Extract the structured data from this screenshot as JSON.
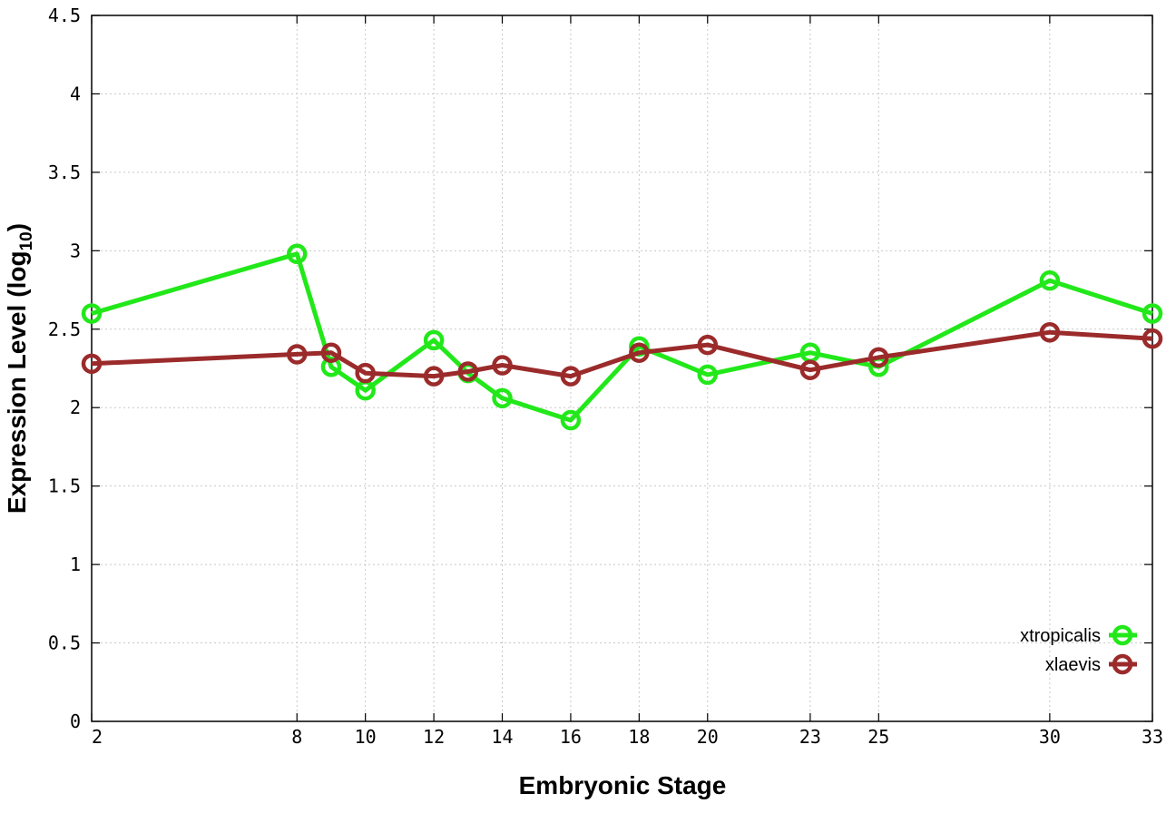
{
  "chart_data": {
    "type": "line",
    "xlabel": "Embryonic Stage",
    "ylabel": "Expression Level",
    "ylabel_subscript": "10",
    "ylabel_prefix": "(log",
    "ylabel_suffix": ")",
    "xlim": [
      2,
      33
    ],
    "ylim": [
      0,
      4.5
    ],
    "grid": true,
    "legend_position": "bottom-right",
    "x_ticks": [
      2,
      8,
      10,
      12,
      14,
      16,
      18,
      20,
      23,
      25,
      30,
      33
    ],
    "y_ticks": [
      {
        "value": 0,
        "label": "0"
      },
      {
        "value": 0.5,
        "label": "0.5"
      },
      {
        "value": 1,
        "label": "1"
      },
      {
        "value": 1.5,
        "label": "1.5"
      },
      {
        "value": 2,
        "label": "2"
      },
      {
        "value": 2.5,
        "label": "2.5"
      },
      {
        "value": 3,
        "label": "3"
      },
      {
        "value": 3.5,
        "label": "3.5"
      },
      {
        "value": 4,
        "label": "4"
      },
      {
        "value": 4.5,
        "label": "4.5"
      }
    ],
    "x": [
      2,
      8,
      9,
      10,
      12,
      13,
      14,
      16,
      18,
      20,
      23,
      25,
      30,
      33
    ],
    "series": [
      {
        "name": "xtropicalis",
        "color": "#22e81a",
        "values": [
          2.6,
          2.98,
          2.26,
          2.11,
          2.43,
          2.22,
          2.06,
          1.92,
          2.39,
          2.21,
          2.35,
          2.26,
          2.81,
          2.6
        ]
      },
      {
        "name": "xlaevis",
        "color": "#9b2b2b",
        "values": [
          2.28,
          2.34,
          2.35,
          2.22,
          2.2,
          2.23,
          2.27,
          2.2,
          2.35,
          2.4,
          2.24,
          2.32,
          2.48,
          2.44
        ]
      }
    ]
  }
}
